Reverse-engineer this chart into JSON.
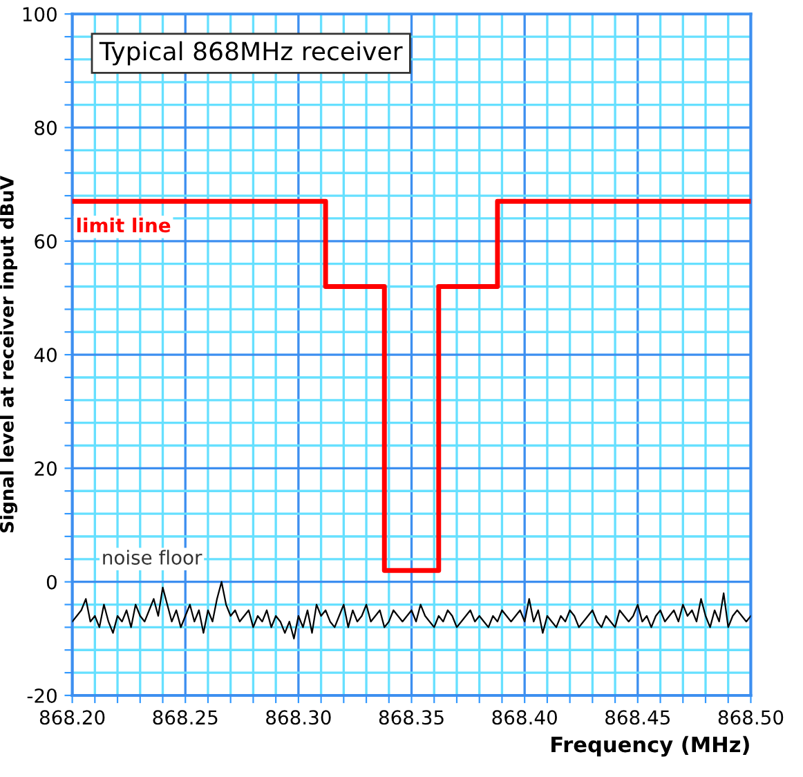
{
  "chart_data": {
    "type": "line",
    "title": "Typical 868MHz receiver",
    "xlabel": "Frequency (MHz)",
    "ylabel": "Signal level at receiver input dBuV",
    "xlim": [
      868.2,
      868.5
    ],
    "ylim": [
      -20,
      100
    ],
    "xticks": [
      {
        "value": 868.2,
        "label": "868.20"
      },
      {
        "value": 868.21,
        "label": null
      },
      {
        "value": 868.22,
        "label": null
      },
      {
        "value": 868.23,
        "label": null
      },
      {
        "value": 868.24,
        "label": null
      },
      {
        "value": 868.25,
        "label": "868.25"
      },
      {
        "value": 868.26,
        "label": null
      },
      {
        "value": 868.27,
        "label": null
      },
      {
        "value": 868.28,
        "label": null
      },
      {
        "value": 868.29,
        "label": null
      },
      {
        "value": 868.3,
        "label": "868.30"
      },
      {
        "value": 868.31,
        "label": null
      },
      {
        "value": 868.32,
        "label": null
      },
      {
        "value": 868.33,
        "label": null
      },
      {
        "value": 868.34,
        "label": null
      },
      {
        "value": 868.35,
        "label": "868.35"
      },
      {
        "value": 868.36,
        "label": null
      },
      {
        "value": 868.37,
        "label": null
      },
      {
        "value": 868.38,
        "label": null
      },
      {
        "value": 868.39,
        "label": null
      },
      {
        "value": 868.4,
        "label": "868.40"
      },
      {
        "value": 868.41,
        "label": null
      },
      {
        "value": 868.42,
        "label": null
      },
      {
        "value": 868.43,
        "label": null
      },
      {
        "value": 868.44,
        "label": null
      },
      {
        "value": 868.45,
        "label": "868.45"
      },
      {
        "value": 868.46,
        "label": null
      },
      {
        "value": 868.47,
        "label": null
      },
      {
        "value": 868.48,
        "label": null
      },
      {
        "value": 868.49,
        "label": null
      },
      {
        "value": 868.5,
        "label": "868.50"
      }
    ],
    "yticks": [
      -20,
      {
        "value": -16,
        "label": null
      },
      {
        "value": -12,
        "label": null
      },
      {
        "value": -8,
        "label": null
      },
      {
        "value": -4,
        "label": null
      },
      0,
      {
        "value": 4,
        "label": null
      },
      {
        "value": 8,
        "label": null
      },
      {
        "value": 12,
        "label": null
      },
      {
        "value": 16,
        "label": null
      },
      20,
      {
        "value": 24,
        "label": null
      },
      {
        "value": 28,
        "label": null
      },
      {
        "value": 32,
        "label": null
      },
      {
        "value": 36,
        "label": null
      },
      40,
      {
        "value": 44,
        "label": null
      },
      {
        "value": 48,
        "label": null
      },
      {
        "value": 52,
        "label": null
      },
      {
        "value": 56,
        "label": null
      },
      60,
      {
        "value": 64,
        "label": null
      },
      {
        "value": 68,
        "label": null
      },
      {
        "value": 72,
        "label": null
      },
      {
        "value": 76,
        "label": null
      },
      80,
      {
        "value": 84,
        "label": null
      },
      {
        "value": 88,
        "label": null
      },
      {
        "value": 92,
        "label": null
      },
      {
        "value": 96,
        "label": null
      },
      100
    ],
    "grid": true,
    "line_style": "solid",
    "marker": "none",
    "series": [
      {
        "type": "step",
        "color": "#ff0000",
        "x": [
          868.2,
          868.312,
          868.312,
          868.338,
          868.338,
          868.362,
          868.362,
          868.388,
          868.388,
          868.5
        ],
        "values": [
          67,
          67,
          52,
          52,
          2,
          2,
          52,
          52,
          67,
          67
        ]
      },
      {
        "color": "#000000",
        "x": [
          868.2,
          868.202,
          868.204,
          868.206,
          868.208,
          868.21,
          868.212,
          868.214,
          868.216,
          868.218,
          868.22,
          868.222,
          868.224,
          868.226,
          868.228,
          868.23,
          868.232,
          868.234,
          868.236,
          868.238,
          868.24,
          868.242,
          868.244,
          868.246,
          868.248,
          868.25,
          868.252,
          868.254,
          868.256,
          868.258,
          868.26,
          868.262,
          868.264,
          868.266,
          868.268,
          868.27,
          868.272,
          868.274,
          868.276,
          868.278,
          868.28,
          868.282,
          868.284,
          868.286,
          868.288,
          868.29,
          868.292,
          868.294,
          868.296,
          868.298,
          868.3,
          868.302,
          868.304,
          868.306,
          868.308,
          868.31,
          868.312,
          868.314,
          868.316,
          868.318,
          868.32,
          868.322,
          868.324,
          868.326,
          868.328,
          868.33,
          868.332,
          868.334,
          868.336,
          868.338,
          868.34,
          868.342,
          868.344,
          868.346,
          868.348,
          868.35,
          868.352,
          868.354,
          868.356,
          868.358,
          868.36,
          868.362,
          868.364,
          868.366,
          868.368,
          868.37,
          868.372,
          868.374,
          868.376,
          868.378,
          868.38,
          868.382,
          868.384,
          868.386,
          868.388,
          868.39,
          868.392,
          868.394,
          868.396,
          868.398,
          868.4,
          868.402,
          868.404,
          868.406,
          868.408,
          868.41,
          868.412,
          868.414,
          868.416,
          868.418,
          868.42,
          868.422,
          868.424,
          868.426,
          868.428,
          868.43,
          868.432,
          868.434,
          868.436,
          868.438,
          868.44,
          868.442,
          868.444,
          868.446,
          868.448,
          868.45,
          868.452,
          868.454,
          868.456,
          868.458,
          868.46,
          868.462,
          868.464,
          868.466,
          868.468,
          868.47,
          868.472,
          868.474,
          868.476,
          868.478,
          868.48,
          868.482,
          868.484,
          868.486,
          868.488,
          868.49,
          868.492,
          868.494,
          868.496,
          868.498,
          868.5
        ],
        "values": [
          -7,
          -6,
          -5,
          -3,
          -7,
          -6,
          -8,
          -4,
          -7,
          -9,
          -6,
          -7,
          -5,
          -8,
          -4,
          -6,
          -7,
          -5,
          -3,
          -6,
          -1,
          -4,
          -7,
          -5,
          -8,
          -6,
          -4,
          -7,
          -5,
          -9,
          -5,
          -7,
          -3,
          0,
          -4,
          -6,
          -5,
          -7,
          -6,
          -5,
          -8,
          -6,
          -7,
          -5,
          -8,
          -6,
          -7,
          -9,
          -7,
          -10,
          -6,
          -8,
          -5,
          -9,
          -4,
          -6,
          -5,
          -7,
          -8,
          -6,
          -4,
          -8,
          -5,
          -7,
          -6,
          -4,
          -7,
          -6,
          -5,
          -8,
          -7,
          -5,
          -6,
          -7,
          -6,
          -5,
          -7,
          -4,
          -6,
          -7,
          -8,
          -6,
          -7,
          -5,
          -6,
          -8,
          -7,
          -6,
          -5,
          -7,
          -6,
          -7,
          -8,
          -6,
          -7,
          -5,
          -6,
          -7,
          -6,
          -5,
          -7,
          -3,
          -7,
          -5,
          -9,
          -6,
          -7,
          -8,
          -6,
          -7,
          -5,
          -6,
          -8,
          -7,
          -6,
          -5,
          -7,
          -8,
          -6,
          -7,
          -8,
          -5,
          -6,
          -7,
          -6,
          -4,
          -7,
          -6,
          -8,
          -6,
          -5,
          -7,
          -6,
          -5,
          -7,
          -4,
          -6,
          -5,
          -7,
          -3,
          -6,
          -8,
          -5,
          -7,
          -2,
          -8,
          -6,
          -5,
          -6,
          -7,
          -6
        ]
      }
    ],
    "annotations": [
      "limit line",
      "noise floor"
    ]
  }
}
